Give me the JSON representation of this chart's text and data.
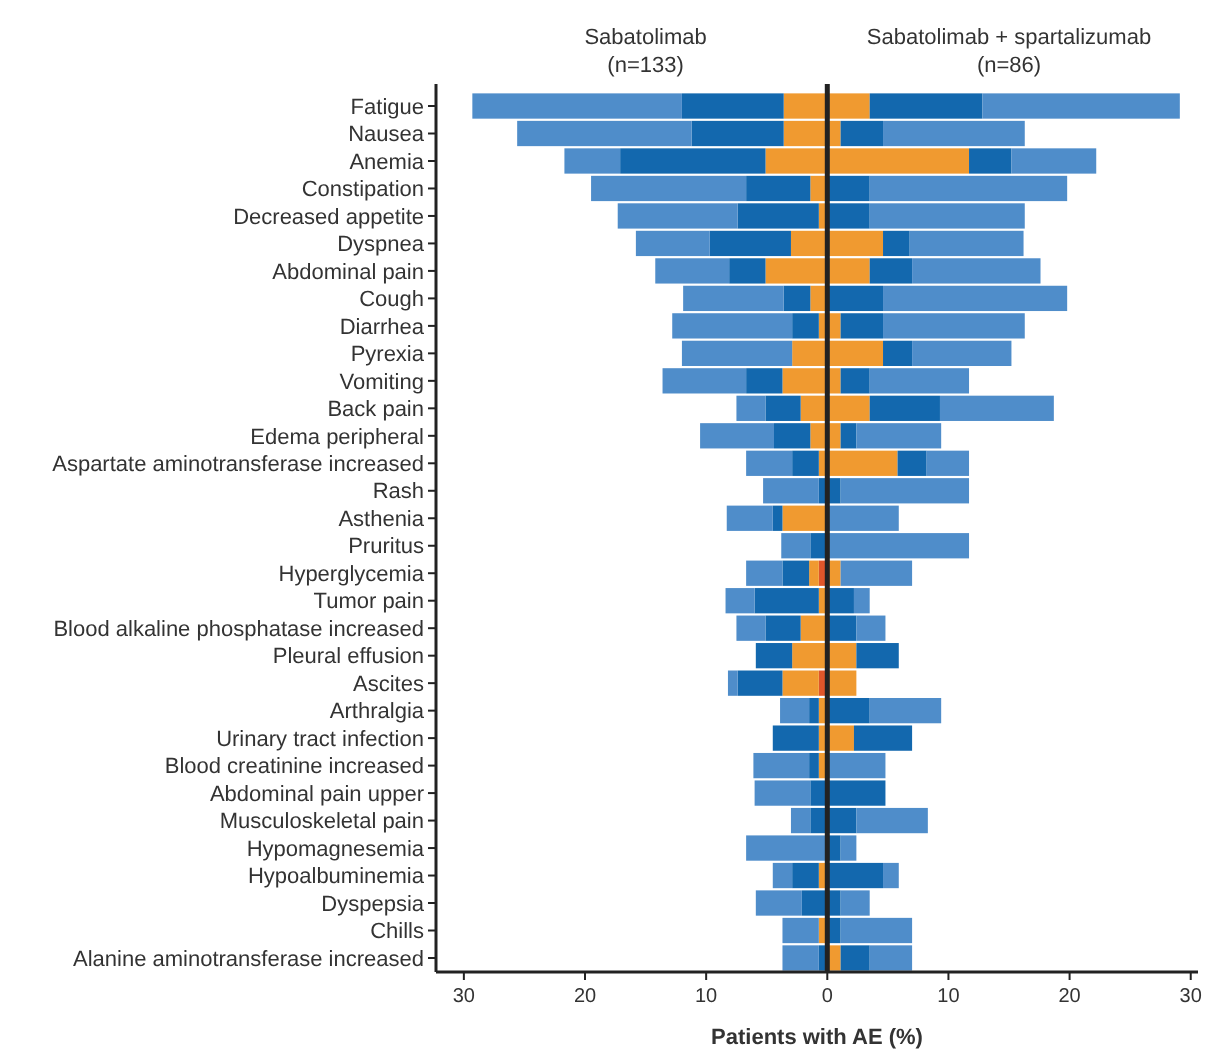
{
  "chart_data": {
    "type": "bar",
    "orientation": "horizontal",
    "stacked": true,
    "categories": [
      "Fatigue",
      "Nausea",
      "Anemia",
      "Constipation",
      "Decreased appetite",
      "Dyspnea",
      "Abdominal pain",
      "Cough",
      "Diarrhea",
      "Pyrexia",
      "Vomiting",
      "Back pain",
      "Edema peripheral",
      "Aspartate aminotransferase increased",
      "Rash",
      "Asthenia",
      "Pruritus",
      "Hyperglycemia",
      "Tumor pain",
      "Blood alkaline phosphatase increased",
      "Pleural effusion",
      "Ascites",
      "Arthralgia",
      "Urinary tract infection",
      "Blood creatinine increased",
      "Abdominal pain upper",
      "Musculoskeletal pain",
      "Hypomagnesemia",
      "Hypoalbuminemia",
      "Dyspepsia",
      "Chills",
      "Alanine aminotransferase increased"
    ],
    "series": [
      {
        "color": "#e0562a",
        "values": [
          null,
          null,
          null,
          null,
          null,
          null,
          null,
          null,
          null,
          null,
          null,
          null,
          null,
          null,
          null,
          null,
          null,
          -0.7,
          null,
          null,
          null,
          -0.7,
          null,
          null,
          null,
          null,
          null,
          null,
          null,
          null,
          null,
          null
        ]
      },
      {
        "color": "#f09a30",
        "values": [
          -3.6,
          -3.6,
          -5.1,
          -1.4,
          -0.7,
          -3.0,
          -5.1,
          -1.4,
          -0.7,
          -2.9,
          -3.7,
          -2.2,
          -1.4,
          -0.7,
          null,
          -3.7,
          null,
          -0.8,
          -0.7,
          -2.2,
          -2.9,
          -3.0,
          -0.7,
          -0.7,
          -0.7,
          null,
          null,
          null,
          -0.7,
          null,
          -0.7,
          null
        ]
      },
      {
        "color": "#1368ae",
        "values": [
          -8.4,
          -7.6,
          -12.0,
          -5.3,
          -6.7,
          -6.7,
          -3.0,
          -2.2,
          -2.2,
          null,
          -3.0,
          -2.9,
          -3.0,
          -2.2,
          -0.7,
          -0.8,
          -1.4,
          -2.2,
          -5.3,
          -2.9,
          -3.0,
          -3.7,
          -0.8,
          -3.8,
          -0.8,
          -1.4,
          -1.4,
          null,
          -2.2,
          -2.1,
          null,
          -0.7
        ]
      },
      {
        "color": "#4f8dca",
        "values": [
          -17.3,
          -14.4,
          -4.6,
          -12.8,
          -9.9,
          -6.1,
          -6.1,
          -8.3,
          -9.9,
          -9.1,
          -6.9,
          -2.4,
          -6.1,
          -3.8,
          -4.6,
          -3.8,
          -2.4,
          -3.0,
          -2.4,
          -2.4,
          null,
          -0.8,
          -2.4,
          null,
          -4.6,
          -4.6,
          -1.6,
          -6.7,
          -1.6,
          -3.8,
          -3.0,
          -3.0
        ]
      },
      {
        "color": "#f09a30",
        "values": [
          3.5,
          1.1,
          11.7,
          null,
          null,
          4.6,
          3.5,
          null,
          1.1,
          4.6,
          1.1,
          3.5,
          1.1,
          5.8,
          null,
          null,
          null,
          1.1,
          null,
          null,
          2.4,
          2.4,
          null,
          2.2,
          null,
          null,
          null,
          null,
          null,
          null,
          null,
          1.1
        ]
      },
      {
        "color": "#1368ae",
        "values": [
          9.3,
          3.5,
          3.5,
          3.5,
          3.5,
          2.2,
          3.5,
          4.6,
          3.5,
          2.4,
          2.4,
          5.8,
          1.3,
          2.4,
          1.1,
          null,
          null,
          null,
          2.2,
          2.4,
          3.5,
          null,
          3.5,
          4.8,
          null,
          4.8,
          2.4,
          1.1,
          4.6,
          1.1,
          1.1,
          2.4
        ]
      },
      {
        "color": "#4f8dca",
        "values": [
          16.3,
          11.7,
          7.0,
          16.3,
          12.8,
          9.4,
          10.6,
          15.2,
          11.7,
          8.2,
          8.2,
          9.4,
          7.0,
          3.5,
          10.6,
          5.9,
          11.7,
          5.9,
          1.3,
          2.4,
          null,
          null,
          5.9,
          null,
          4.8,
          null,
          5.9,
          1.3,
          1.3,
          2.4,
          5.9,
          3.5
        ]
      }
    ],
    "xlim": [
      -32.3,
      30.6
    ],
    "xticks": [
      {
        "value": -30,
        "label": "30"
      },
      {
        "value": -20,
        "label": "20"
      },
      {
        "value": -10,
        "label": "10"
      },
      0,
      10,
      20,
      30
    ],
    "xlabel": "Patients with AE (%)",
    "annotations": [
      "Sabatolimab\n(n=133)",
      "Sabatolimab + spartalizumab\n(n=86)"
    ],
    "ref_lines": [
      {
        "axis": "x",
        "value": 0,
        "color": "#222222"
      }
    ],
    "grid": false
  }
}
